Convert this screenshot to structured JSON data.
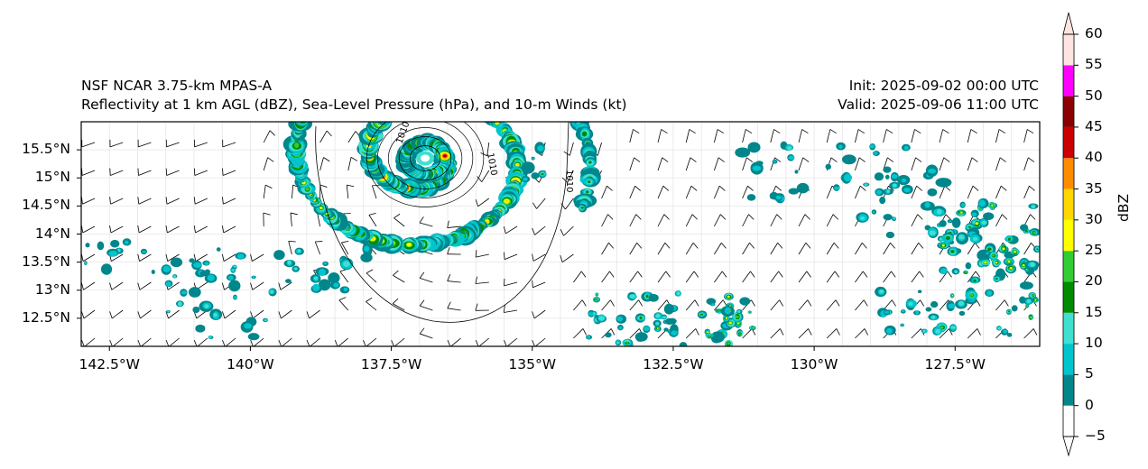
{
  "header": {
    "model": "NSF NCAR 3.75-km MPAS-A",
    "fields": "Reflectivity at 1 km AGL (dBZ), Sea-Level Pressure (hPa), and 10-m Winds (kt)",
    "init": "Init: 2025-09-02 00:00 UTC",
    "valid": "Valid: 2025-09-06 11:00 UTC"
  },
  "map": {
    "lon_range": [
      -143.0,
      -126.0
    ],
    "lat_range": [
      12.0,
      16.0
    ],
    "lon_ticks": [
      "142.5°W",
      "140°W",
      "137.5°W",
      "135°W",
      "132.5°W",
      "130°W",
      "127.5°W"
    ],
    "lon_values": [
      -142.5,
      -140,
      -137.5,
      -135,
      -132.5,
      -130,
      -127.5
    ],
    "lat_ticks": [
      "15.5°N",
      "15°N",
      "14.5°N",
      "14°N",
      "13.5°N",
      "13°N",
      "12.5°N"
    ],
    "lat_values": [
      15.5,
      15,
      14.5,
      14,
      13.5,
      13,
      12.5
    ],
    "isobar_labels": [
      "1010",
      "1010",
      "1010"
    ],
    "storm_center": {
      "lon": -136.9,
      "lat": 15.35
    }
  },
  "colorbar": {
    "label": "dBZ",
    "ticks": [
      "60",
      "55",
      "50",
      "45",
      "40",
      "35",
      "30",
      "25",
      "20",
      "15",
      "10",
      "5",
      "0",
      "−5"
    ],
    "colors": [
      "#ffffff",
      "#00868b",
      "#00c5cd",
      "#40e0d0",
      "#008b00",
      "#32cd32",
      "#ffff00",
      "#ffd700",
      "#ff8c00",
      "#cd0000",
      "#8b0000",
      "#ff00ff",
      "#ffe4e1"
    ]
  }
}
